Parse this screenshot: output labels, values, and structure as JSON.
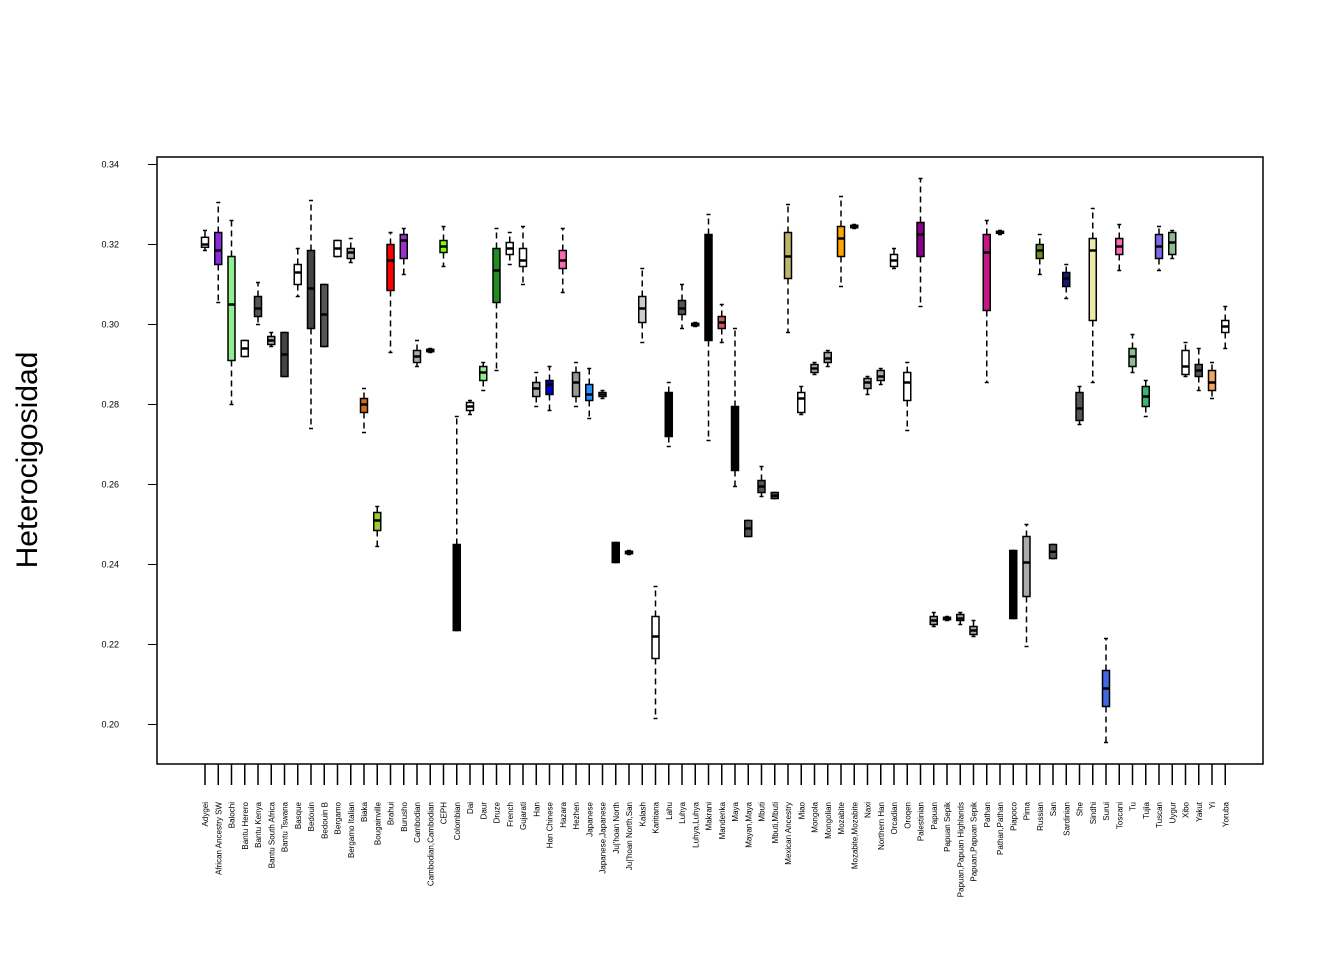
{
  "chart_data": {
    "type": "box",
    "title": "",
    "xlabel": "",
    "ylabel": "Heterocigosidad",
    "ylim": [
      0.19,
      0.342
    ],
    "yticks": [
      "0.20",
      "0.22",
      "0.24",
      "0.26",
      "0.28",
      "0.30",
      "0.32",
      "0.34"
    ],
    "ytick_values": [
      0.2,
      0.22,
      0.24,
      0.26,
      0.28,
      0.3,
      0.32,
      0.34
    ],
    "grid": false,
    "legend": "none",
    "categories": [
      "Adygei",
      "African Ancestry SW",
      "Balochi",
      "Bantu Herero",
      "Bantu Kenya",
      "Bantu South Africa",
      "Bantu Tswana",
      "Basque",
      "Bedouin",
      "Bedouin B",
      "Bergamo",
      "Bergamo Italian",
      "Biaka",
      "Bougainville",
      "Brahui",
      "Burusho",
      "Cambodian",
      "Cambodian,Cambodian",
      "CEPH",
      "Colombian",
      "Dai",
      "Daur",
      "Druze",
      "French",
      "Gujarati",
      "Han",
      "Han Chinese",
      "Hazara",
      "Hezhen",
      "Japanese",
      "Japanese,Japanese",
      "Ju|'hoan North",
      "Ju|'hoan North,San",
      "Kalash",
      "Karitiana",
      "Lahu",
      "Luhya",
      "Luhya,Luhya",
      "Makrani",
      "Mandenka",
      "Maya",
      "Mayan,Maya",
      "Mbuti",
      "Mbuti,Mbuti",
      "Mexican Ancestry",
      "Miao",
      "Mongola",
      "Mongolian",
      "Mozabite",
      "Mozabite,Mozabite",
      "Naxi",
      "Northern Han",
      "Orcadian",
      "Oroqen",
      "Palestinian",
      "Papuan",
      "Papuan Sepik",
      "Papuan,Papuan Highlands",
      "Papuan,Papuan Sepik",
      "Pathan",
      "Pathan,Pathan",
      "Piapoco",
      "Pima",
      "Russian",
      "San",
      "Sardinian",
      "She",
      "Sindhi",
      "Surui",
      "Toscani",
      "Tu",
      "Tujia",
      "Tuscan",
      "Uygur",
      "Xibo",
      "Yakut",
      "Yi",
      "Yoruba"
    ],
    "series": [
      {
        "color": "#ffffff",
        "whisker_low": 0.3185,
        "q1": 0.3193,
        "median": 0.32,
        "q3": 0.3218,
        "whisker_high": 0.3235
      },
      {
        "color": "#8a2be2",
        "whisker_low": 0.3055,
        "q1": 0.315,
        "median": 0.3185,
        "q3": 0.323,
        "whisker_high": 0.3305
      },
      {
        "color": "#90ee90",
        "whisker_low": 0.28,
        "q1": 0.291,
        "median": 0.305,
        "q3": 0.317,
        "whisker_high": 0.326
      },
      {
        "color": "#ffffff",
        "whisker_low": 0.292,
        "q1": 0.292,
        "median": 0.294,
        "q3": 0.296,
        "whisker_high": 0.296
      },
      {
        "color": "#555555",
        "whisker_low": 0.3,
        "q1": 0.302,
        "median": 0.304,
        "q3": 0.307,
        "whisker_high": 0.3105
      },
      {
        "color": "#aaaaaa",
        "whisker_low": 0.2945,
        "q1": 0.295,
        "median": 0.296,
        "q3": 0.297,
        "whisker_high": 0.298
      },
      {
        "color": "#444444",
        "whisker_low": 0.287,
        "q1": 0.287,
        "median": 0.2925,
        "q3": 0.298,
        "whisker_high": 0.298
      },
      {
        "color": "#ffffff",
        "whisker_low": 0.307,
        "q1": 0.31,
        "median": 0.313,
        "q3": 0.315,
        "whisker_high": 0.319
      },
      {
        "color": "#444444",
        "whisker_low": 0.274,
        "q1": 0.299,
        "median": 0.309,
        "q3": 0.3185,
        "whisker_high": 0.331
      },
      {
        "color": "#555555",
        "whisker_low": 0.2945,
        "q1": 0.2945,
        "median": 0.3025,
        "q3": 0.31,
        "whisker_high": 0.31
      },
      {
        "color": "#ffffff",
        "whisker_low": 0.317,
        "q1": 0.317,
        "median": 0.319,
        "q3": 0.321,
        "whisker_high": 0.321
      },
      {
        "color": "#aaaaaa",
        "whisker_low": 0.3155,
        "q1": 0.3165,
        "median": 0.318,
        "q3": 0.319,
        "whisker_high": 0.3215
      },
      {
        "color": "#d2691e",
        "whisker_low": 0.273,
        "q1": 0.278,
        "median": 0.28,
        "q3": 0.2815,
        "whisker_high": 0.284
      },
      {
        "color": "#9acd32",
        "whisker_low": 0.2445,
        "q1": 0.2485,
        "median": 0.251,
        "q3": 0.253,
        "whisker_high": 0.2545
      },
      {
        "color": "#ff0000",
        "whisker_low": 0.293,
        "q1": 0.3085,
        "median": 0.316,
        "q3": 0.32,
        "whisker_high": 0.323
      },
      {
        "color": "#9932cc",
        "whisker_low": 0.3125,
        "q1": 0.3165,
        "median": 0.321,
        "q3": 0.3225,
        "whisker_high": 0.324
      },
      {
        "color": "#aaaaaa",
        "whisker_low": 0.2895,
        "q1": 0.2905,
        "median": 0.292,
        "q3": 0.2935,
        "whisker_high": 0.296
      },
      {
        "color": "#ffffff",
        "whisker_low": 0.293,
        "q1": 0.2932,
        "median": 0.2935,
        "q3": 0.2938,
        "whisker_high": 0.294
      },
      {
        "color": "#7fff00",
        "whisker_low": 0.3145,
        "q1": 0.318,
        "median": 0.3195,
        "q3": 0.321,
        "whisker_high": 0.3245
      },
      {
        "color": "#000000",
        "whisker_low": 0.2235,
        "q1": 0.2235,
        "median": 0.234,
        "q3": 0.245,
        "whisker_high": 0.277
      },
      {
        "color": "#ffffff",
        "whisker_low": 0.2775,
        "q1": 0.2785,
        "median": 0.2795,
        "q3": 0.2805,
        "whisker_high": 0.281
      },
      {
        "color": "#90ee90",
        "whisker_low": 0.2835,
        "q1": 0.286,
        "median": 0.288,
        "q3": 0.2895,
        "whisker_high": 0.2905
      },
      {
        "color": "#228b22",
        "whisker_low": 0.2885,
        "q1": 0.3055,
        "median": 0.3135,
        "q3": 0.319,
        "whisker_high": 0.324
      },
      {
        "color": "#ffffff",
        "whisker_low": 0.315,
        "q1": 0.3175,
        "median": 0.319,
        "q3": 0.3205,
        "whisker_high": 0.323
      },
      {
        "color": "#ffffff",
        "whisker_low": 0.31,
        "q1": 0.3145,
        "median": 0.316,
        "q3": 0.319,
        "whisker_high": 0.3245
      },
      {
        "color": "#aaaaaa",
        "whisker_low": 0.2795,
        "q1": 0.282,
        "median": 0.284,
        "q3": 0.2855,
        "whisker_high": 0.288
      },
      {
        "color": "#0000cd",
        "whisker_low": 0.2785,
        "q1": 0.2825,
        "median": 0.285,
        "q3": 0.286,
        "whisker_high": 0.2895
      },
      {
        "color": "#ff69b4",
        "whisker_low": 0.308,
        "q1": 0.314,
        "median": 0.316,
        "q3": 0.3185,
        "whisker_high": 0.324
      },
      {
        "color": "#999999",
        "whisker_low": 0.2795,
        "q1": 0.282,
        "median": 0.2855,
        "q3": 0.288,
        "whisker_high": 0.2905
      },
      {
        "color": "#1e90ff",
        "whisker_low": 0.2765,
        "q1": 0.281,
        "median": 0.2825,
        "q3": 0.285,
        "whisker_high": 0.289
      },
      {
        "color": "#ffffff",
        "whisker_low": 0.2815,
        "q1": 0.282,
        "median": 0.2825,
        "q3": 0.283,
        "whisker_high": 0.2835
      },
      {
        "color": "#000000",
        "whisker_low": 0.2405,
        "q1": 0.2405,
        "median": 0.243,
        "q3": 0.2455,
        "whisker_high": 0.2455
      },
      {
        "color": "#ffffff",
        "whisker_low": 0.2425,
        "q1": 0.2427,
        "median": 0.243,
        "q3": 0.2433,
        "whisker_high": 0.2435
      },
      {
        "color": "#cccccc",
        "whisker_low": 0.2955,
        "q1": 0.3005,
        "median": 0.304,
        "q3": 0.307,
        "whisker_high": 0.314
      },
      {
        "color": "#ffffff",
        "whisker_low": 0.2015,
        "q1": 0.2165,
        "median": 0.222,
        "q3": 0.227,
        "whisker_high": 0.2345
      },
      {
        "color": "#000000",
        "whisker_low": 0.2695,
        "q1": 0.272,
        "median": 0.276,
        "q3": 0.283,
        "whisker_high": 0.2855
      },
      {
        "color": "#555555",
        "whisker_low": 0.299,
        "q1": 0.3025,
        "median": 0.304,
        "q3": 0.306,
        "whisker_high": 0.31
      },
      {
        "color": "#ffffff",
        "whisker_low": 0.2995,
        "q1": 0.2997,
        "median": 0.3,
        "q3": 0.3003,
        "whisker_high": 0.3005
      },
      {
        "color": "#000000",
        "whisker_low": 0.271,
        "q1": 0.296,
        "median": 0.301,
        "q3": 0.3225,
        "whisker_high": 0.3275
      },
      {
        "color": "#cd5c5c",
        "whisker_low": 0.2955,
        "q1": 0.299,
        "median": 0.3005,
        "q3": 0.302,
        "whisker_high": 0.305
      },
      {
        "color": "#000000",
        "whisker_low": 0.2595,
        "q1": 0.2635,
        "median": 0.272,
        "q3": 0.2795,
        "whisker_high": 0.299
      },
      {
        "color": "#555555",
        "whisker_low": 0.247,
        "q1": 0.247,
        "median": 0.249,
        "q3": 0.251,
        "whisker_high": 0.251
      },
      {
        "color": "#555555",
        "whisker_low": 0.257,
        "q1": 0.258,
        "median": 0.2595,
        "q3": 0.261,
        "whisker_high": 0.2645
      },
      {
        "color": "#555555",
        "whisker_low": 0.2565,
        "q1": 0.2565,
        "median": 0.2572,
        "q3": 0.258,
        "whisker_high": 0.258
      },
      {
        "color": "#bdb76b",
        "whisker_low": 0.298,
        "q1": 0.3115,
        "median": 0.317,
        "q3": 0.323,
        "whisker_high": 0.33
      },
      {
        "color": "#ffffff",
        "whisker_low": 0.2775,
        "q1": 0.278,
        "median": 0.2815,
        "q3": 0.283,
        "whisker_high": 0.2845
      },
      {
        "color": "#aaaaaa",
        "whisker_low": 0.2875,
        "q1": 0.288,
        "median": 0.289,
        "q3": 0.29,
        "whisker_high": 0.2905
      },
      {
        "color": "#aaaaaa",
        "whisker_low": 0.2895,
        "q1": 0.2905,
        "median": 0.2915,
        "q3": 0.293,
        "whisker_high": 0.2935
      },
      {
        "color": "#ffa500",
        "whisker_low": 0.3095,
        "q1": 0.317,
        "median": 0.3215,
        "q3": 0.3245,
        "whisker_high": 0.332
      },
      {
        "color": "#ffffff",
        "whisker_low": 0.324,
        "q1": 0.3242,
        "median": 0.3245,
        "q3": 0.3248,
        "whisker_high": 0.325
      },
      {
        "color": "#aaaaaa",
        "whisker_low": 0.2825,
        "q1": 0.284,
        "median": 0.2855,
        "q3": 0.2865,
        "whisker_high": 0.287
      },
      {
        "color": "#aaaaaa",
        "whisker_low": 0.285,
        "q1": 0.286,
        "median": 0.287,
        "q3": 0.2885,
        "whisker_high": 0.289
      },
      {
        "color": "#ffffff",
        "whisker_low": 0.314,
        "q1": 0.3145,
        "median": 0.316,
        "q3": 0.3175,
        "whisker_high": 0.319
      },
      {
        "color": "#ffffff",
        "whisker_low": 0.2735,
        "q1": 0.281,
        "median": 0.2855,
        "q3": 0.288,
        "whisker_high": 0.2905
      },
      {
        "color": "#8b008b",
        "whisker_low": 0.3045,
        "q1": 0.317,
        "median": 0.3225,
        "q3": 0.3255,
        "whisker_high": 0.3365
      },
      {
        "color": "#aaaaaa",
        "whisker_low": 0.2245,
        "q1": 0.225,
        "median": 0.226,
        "q3": 0.227,
        "whisker_high": 0.228
      },
      {
        "color": "#ffffff",
        "whisker_low": 0.226,
        "q1": 0.2262,
        "median": 0.2265,
        "q3": 0.2268,
        "whisker_high": 0.227
      },
      {
        "color": "#aaaaaa",
        "whisker_low": 0.225,
        "q1": 0.226,
        "median": 0.2265,
        "q3": 0.2275,
        "whisker_high": 0.228
      },
      {
        "color": "#aaaaaa",
        "whisker_low": 0.222,
        "q1": 0.2225,
        "median": 0.2235,
        "q3": 0.2245,
        "whisker_high": 0.226
      },
      {
        "color": "#c71585",
        "whisker_low": 0.2855,
        "q1": 0.3035,
        "median": 0.318,
        "q3": 0.3225,
        "whisker_high": 0.326
      },
      {
        "color": "#ffffff",
        "whisker_low": 0.3225,
        "q1": 0.3228,
        "median": 0.323,
        "q3": 0.3233,
        "whisker_high": 0.3235
      },
      {
        "color": "#000000",
        "whisker_low": 0.2265,
        "q1": 0.2265,
        "median": 0.235,
        "q3": 0.2435,
        "whisker_high": 0.2435
      },
      {
        "color": "#aaaaaa",
        "whisker_low": 0.2195,
        "q1": 0.232,
        "median": 0.2405,
        "q3": 0.247,
        "whisker_high": 0.25
      },
      {
        "color": "#6b8e23",
        "whisker_low": 0.3125,
        "q1": 0.3165,
        "median": 0.3185,
        "q3": 0.32,
        "whisker_high": 0.3225
      },
      {
        "color": "#555555",
        "whisker_low": 0.2415,
        "q1": 0.2415,
        "median": 0.2432,
        "q3": 0.245,
        "whisker_high": 0.245
      },
      {
        "color": "#191970",
        "whisker_low": 0.3065,
        "q1": 0.3095,
        "median": 0.3115,
        "q3": 0.313,
        "whisker_high": 0.315
      },
      {
        "color": "#555555",
        "whisker_low": 0.275,
        "q1": 0.276,
        "median": 0.279,
        "q3": 0.283,
        "whisker_high": 0.2845
      },
      {
        "color": "#eee8aa",
        "whisker_low": 0.2855,
        "q1": 0.301,
        "median": 0.3185,
        "q3": 0.3215,
        "whisker_high": 0.329
      },
      {
        "color": "#4169e1",
        "whisker_low": 0.1955,
        "q1": 0.2045,
        "median": 0.209,
        "q3": 0.2135,
        "whisker_high": 0.2215
      },
      {
        "color": "#ff69b4",
        "whisker_low": 0.3135,
        "q1": 0.3175,
        "median": 0.3195,
        "q3": 0.3215,
        "whisker_high": 0.325
      },
      {
        "color": "#8fbc8f",
        "whisker_low": 0.288,
        "q1": 0.2895,
        "median": 0.292,
        "q3": 0.294,
        "whisker_high": 0.2975
      },
      {
        "color": "#3cb371",
        "whisker_low": 0.277,
        "q1": 0.2795,
        "median": 0.282,
        "q3": 0.2845,
        "whisker_high": 0.286
      },
      {
        "color": "#7b68ee",
        "whisker_low": 0.3135,
        "q1": 0.3165,
        "median": 0.3195,
        "q3": 0.3225,
        "whisker_high": 0.3245
      },
      {
        "color": "#8fbc8f",
        "whisker_low": 0.3165,
        "q1": 0.3175,
        "median": 0.3205,
        "q3": 0.323,
        "whisker_high": 0.3235
      },
      {
        "color": "#ffffff",
        "whisker_low": 0.287,
        "q1": 0.2875,
        "median": 0.2895,
        "q3": 0.2935,
        "whisker_high": 0.2955
      },
      {
        "color": "#555555",
        "whisker_low": 0.2835,
        "q1": 0.287,
        "median": 0.2885,
        "q3": 0.29,
        "whisker_high": 0.294
      },
      {
        "color": "#f4a460",
        "whisker_low": 0.2815,
        "q1": 0.2835,
        "median": 0.2855,
        "q3": 0.2885,
        "whisker_high": 0.2905
      },
      {
        "color": "#ffffff",
        "whisker_low": 0.294,
        "q1": 0.298,
        "median": 0.2995,
        "q3": 0.301,
        "whisker_high": 0.3045
      }
    ]
  }
}
